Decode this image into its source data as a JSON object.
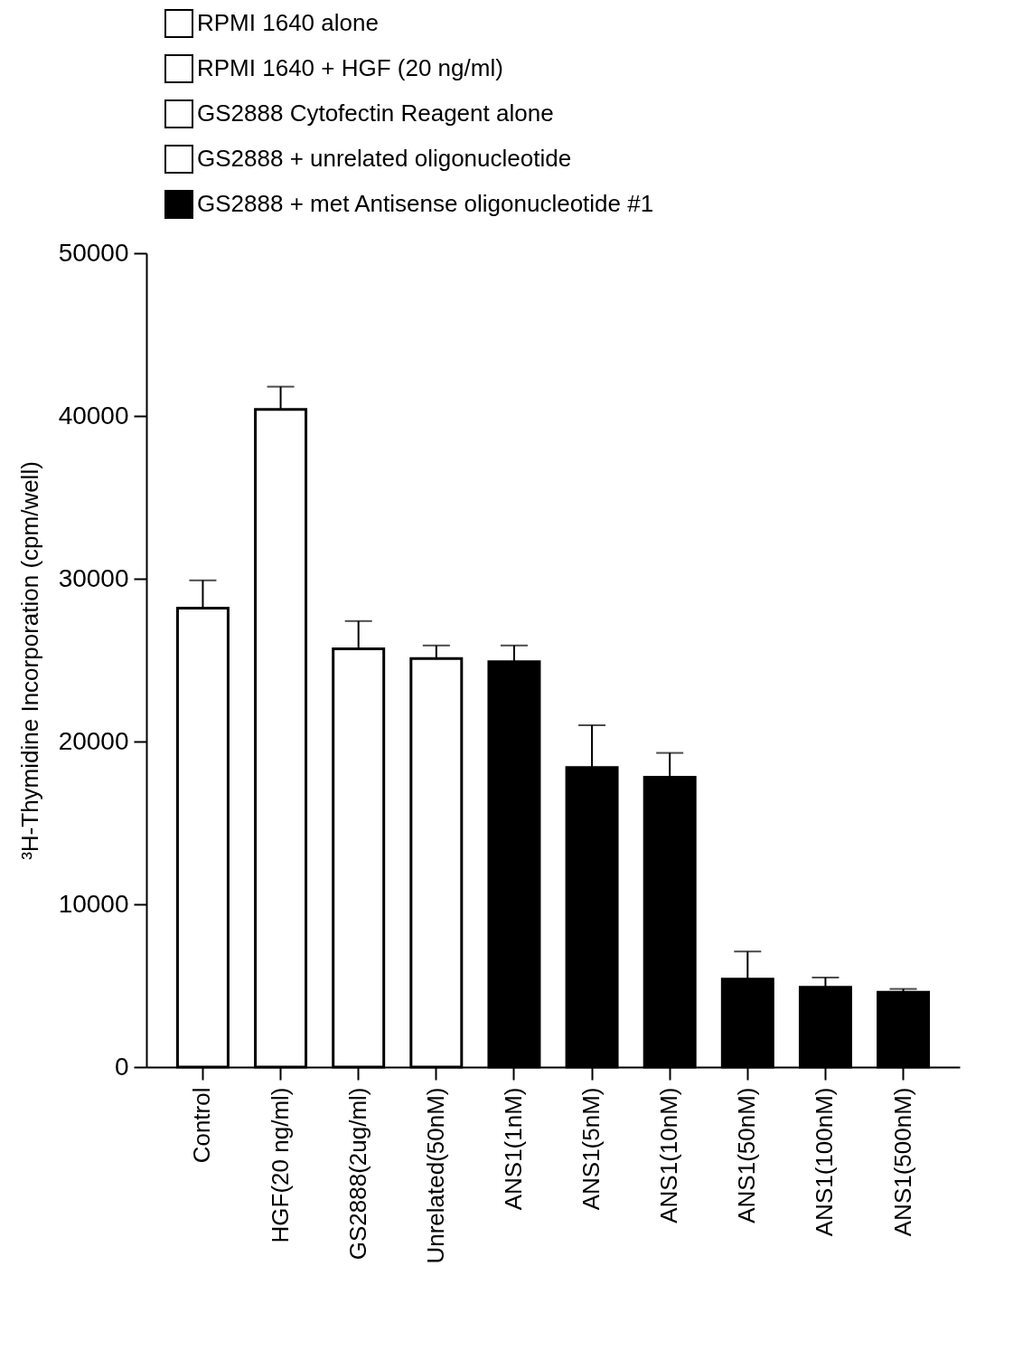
{
  "chart_data": {
    "type": "bar",
    "ylabel": "³H-Thymidine Incorporation (cpm/well)",
    "categories": [
      "Control",
      "HGF(20 ng/ml)",
      "GS2888(2ug/ml)",
      "Unrelated(50nM)",
      "ANS1(1nM)",
      "ANS1(5nM)",
      "ANS1(10nM)",
      "ANS1(50nM)",
      "ANS1(100nM)",
      "ANS1(500nM)"
    ],
    "series": [
      {
        "name": "RPMI 1640 alone",
        "color": "#ffffff",
        "values": [
          28200,
          null,
          null,
          null,
          null,
          null,
          null,
          null,
          null,
          null
        ],
        "errors": [
          1700,
          null,
          null,
          null,
          null,
          null,
          null,
          null,
          null,
          null
        ]
      },
      {
        "name": "RPMI 1640 + HGF (20 ng/ml)",
        "color": "#ffffff",
        "values": [
          null,
          40400,
          null,
          null,
          null,
          null,
          null,
          null,
          null,
          null
        ],
        "errors": [
          null,
          1400,
          null,
          null,
          null,
          null,
          null,
          null,
          null,
          null
        ]
      },
      {
        "name": "GS2888 Cytofectin Reagent alone",
        "color": "#ffffff",
        "values": [
          null,
          null,
          25700,
          null,
          null,
          null,
          null,
          null,
          null,
          null
        ],
        "errors": [
          null,
          null,
          1700,
          null,
          null,
          null,
          null,
          null,
          null,
          null
        ]
      },
      {
        "name": "GS2888 + unrelated oligonucleotide",
        "color": "#ffffff",
        "values": [
          null,
          null,
          null,
          25100,
          null,
          null,
          null,
          null,
          null,
          null
        ],
        "errors": [
          null,
          null,
          null,
          800,
          null,
          null,
          null,
          null,
          null,
          null
        ]
      },
      {
        "name": "GS2888 + met Antisense oligonucleotide #1",
        "color": "#000000",
        "values": [
          null,
          null,
          null,
          null,
          24900,
          18400,
          17800,
          5400,
          4900,
          4600
        ],
        "errors": [
          null,
          null,
          null,
          null,
          1000,
          2600,
          1500,
          1700,
          600,
          200
        ]
      }
    ],
    "ylim": [
      0,
      50000
    ],
    "yticks": [
      0,
      10000,
      20000,
      30000,
      40000,
      50000
    ],
    "legend": "top left"
  }
}
